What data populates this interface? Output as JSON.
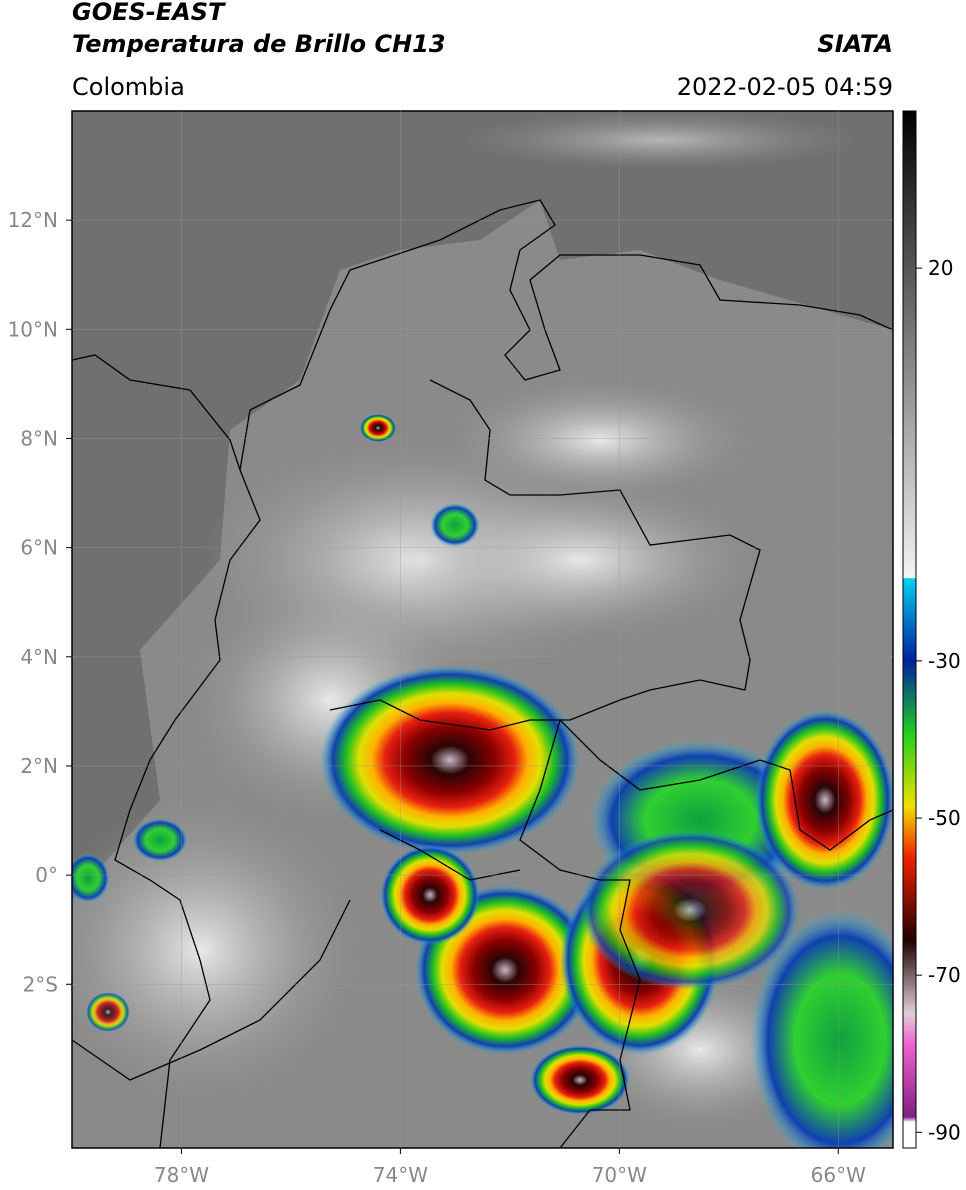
{
  "header": {
    "title": "GOES-EAST",
    "subtitle": "Temperatura de Brillo CH13",
    "source": "SIATA",
    "region": "Colombia",
    "datetime": "2022-02-05 04:59"
  },
  "map": {
    "xlim": [
      -80,
      -65
    ],
    "ylim": [
      -5,
      14
    ],
    "xticks": [
      {
        "value": -78,
        "label": "78°W"
      },
      {
        "value": -74,
        "label": "74°W"
      },
      {
        "value": -70,
        "label": "70°W"
      },
      {
        "value": -66,
        "label": "66°W"
      }
    ],
    "yticks": [
      {
        "value": 12,
        "label": "12°N"
      },
      {
        "value": 10,
        "label": "10°N"
      },
      {
        "value": 8,
        "label": "8°N"
      },
      {
        "value": 6,
        "label": "6°N"
      },
      {
        "value": 4,
        "label": "4°N"
      },
      {
        "value": 2,
        "label": "2°N"
      },
      {
        "value": 0,
        "label": "0°"
      },
      {
        "value": -2,
        "label": "2°S"
      }
    ],
    "grid": true
  },
  "colorbar": {
    "lim": [
      -92,
      40
    ],
    "ticks": [
      20,
      -30,
      -50,
      -70,
      -90
    ]
  }
}
